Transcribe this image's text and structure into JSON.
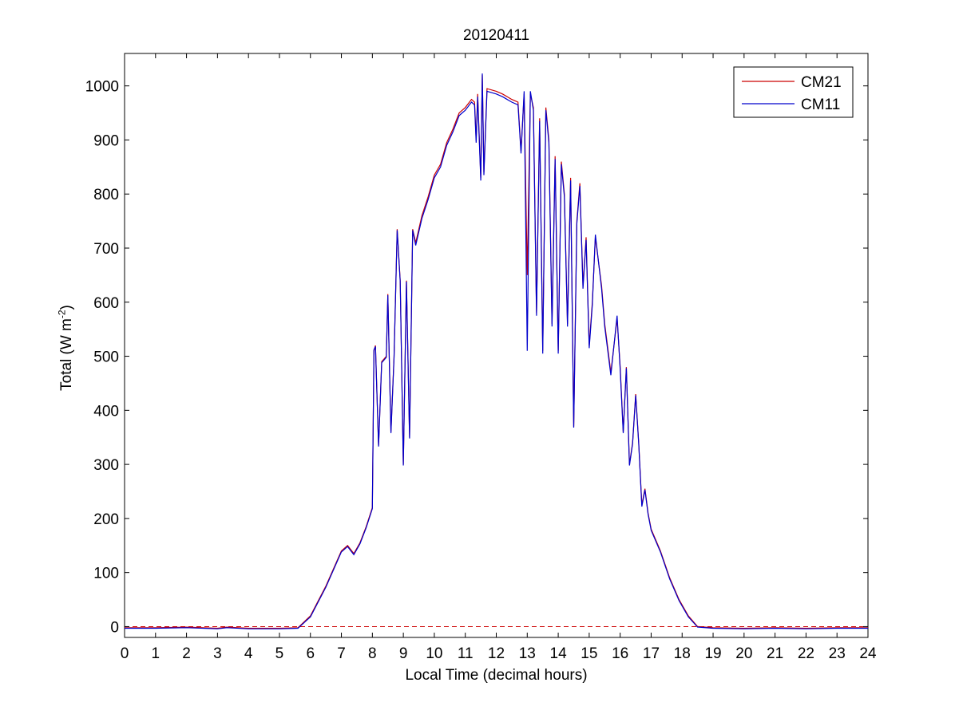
{
  "chart_data": {
    "type": "line",
    "title": "20120411",
    "xlabel": "Local Time (decimal hours)",
    "ylabel": {
      "main": "Total (W m",
      "sup": "-2",
      "tail": ")"
    },
    "xlim": [
      0,
      24
    ],
    "ylim": [
      -20,
      1060
    ],
    "xticks": [
      0,
      1,
      2,
      3,
      4,
      5,
      6,
      7,
      8,
      9,
      10,
      11,
      12,
      13,
      14,
      15,
      16,
      17,
      18,
      19,
      20,
      21,
      22,
      23,
      24
    ],
    "yticks": [
      0,
      100,
      200,
      300,
      400,
      500,
      600,
      700,
      800,
      900,
      1000
    ],
    "grid": false,
    "legend_position": "top-right",
    "reference_line": {
      "y": 0,
      "color": "#cc0000",
      "style": "dashed"
    },
    "series": [
      {
        "name": "CM21",
        "color": "#cc0000",
        "points": [
          [
            0,
            -2
          ],
          [
            1,
            -2
          ],
          [
            2,
            -1
          ],
          [
            3,
            -3
          ],
          [
            3.3,
            -1
          ],
          [
            4,
            -3
          ],
          [
            5,
            -3
          ],
          [
            5.6,
            -2
          ],
          [
            6,
            20
          ],
          [
            6.5,
            75
          ],
          [
            7,
            140
          ],
          [
            7.2,
            150
          ],
          [
            7.4,
            135
          ],
          [
            7.6,
            155
          ],
          [
            7.8,
            185
          ],
          [
            8,
            220
          ],
          [
            8.05,
            510
          ],
          [
            8.1,
            520
          ],
          [
            8.2,
            335
          ],
          [
            8.3,
            490
          ],
          [
            8.45,
            500
          ],
          [
            8.5,
            615
          ],
          [
            8.6,
            360
          ],
          [
            8.7,
            500
          ],
          [
            8.8,
            735
          ],
          [
            8.9,
            640
          ],
          [
            9,
            300
          ],
          [
            9.1,
            640
          ],
          [
            9.2,
            350
          ],
          [
            9.3,
            735
          ],
          [
            9.4,
            710
          ],
          [
            9.6,
            760
          ],
          [
            9.8,
            795
          ],
          [
            10,
            835
          ],
          [
            10.2,
            855
          ],
          [
            10.4,
            895
          ],
          [
            10.6,
            920
          ],
          [
            10.8,
            950
          ],
          [
            11,
            960
          ],
          [
            11.2,
            975
          ],
          [
            11.3,
            970
          ],
          [
            11.35,
            900
          ],
          [
            11.4,
            985
          ],
          [
            11.5,
            830
          ],
          [
            11.55,
            1020
          ],
          [
            11.6,
            840
          ],
          [
            11.7,
            995
          ],
          [
            12,
            990
          ],
          [
            12.2,
            985
          ],
          [
            12.5,
            975
          ],
          [
            12.7,
            970
          ],
          [
            12.8,
            880
          ],
          [
            12.9,
            985
          ],
          [
            13,
            650
          ],
          [
            13.1,
            985
          ],
          [
            13.2,
            960
          ],
          [
            13.3,
            580
          ],
          [
            13.4,
            940
          ],
          [
            13.5,
            510
          ],
          [
            13.6,
            960
          ],
          [
            13.7,
            900
          ],
          [
            13.8,
            560
          ],
          [
            13.9,
            870
          ],
          [
            14,
            510
          ],
          [
            14.1,
            860
          ],
          [
            14.2,
            800
          ],
          [
            14.3,
            560
          ],
          [
            14.4,
            830
          ],
          [
            14.5,
            370
          ],
          [
            14.6,
            750
          ],
          [
            14.7,
            820
          ],
          [
            14.8,
            630
          ],
          [
            14.9,
            720
          ],
          [
            15,
            520
          ],
          [
            15.1,
            600
          ],
          [
            15.2,
            720
          ],
          [
            15.4,
            630
          ],
          [
            15.5,
            560
          ],
          [
            15.7,
            470
          ],
          [
            15.9,
            570
          ],
          [
            16,
            480
          ],
          [
            16.1,
            360
          ],
          [
            16.2,
            480
          ],
          [
            16.3,
            300
          ],
          [
            16.4,
            340
          ],
          [
            16.5,
            430
          ],
          [
            16.6,
            340
          ],
          [
            16.7,
            225
          ],
          [
            16.8,
            255
          ],
          [
            16.9,
            210
          ],
          [
            17,
            180
          ],
          [
            17.3,
            140
          ],
          [
            17.6,
            90
          ],
          [
            17.9,
            50
          ],
          [
            18.2,
            20
          ],
          [
            18.5,
            0
          ],
          [
            19,
            -2
          ],
          [
            20,
            -3
          ],
          [
            21,
            -2
          ],
          [
            22,
            -3
          ],
          [
            23,
            -2
          ],
          [
            24,
            -2
          ]
        ]
      },
      {
        "name": "CM11",
        "color": "#0000cc",
        "points": [
          [
            0,
            -3
          ],
          [
            1,
            -3
          ],
          [
            2,
            -2
          ],
          [
            3,
            -4
          ],
          [
            3.3,
            -2
          ],
          [
            4,
            -4
          ],
          [
            5,
            -4
          ],
          [
            5.6,
            -3
          ],
          [
            6,
            18
          ],
          [
            6.5,
            73
          ],
          [
            7,
            138
          ],
          [
            7.2,
            148
          ],
          [
            7.4,
            133
          ],
          [
            7.6,
            153
          ],
          [
            7.8,
            183
          ],
          [
            8,
            218
          ],
          [
            8.05,
            512
          ],
          [
            8.1,
            518
          ],
          [
            8.2,
            333
          ],
          [
            8.3,
            488
          ],
          [
            8.45,
            498
          ],
          [
            8.5,
            613
          ],
          [
            8.6,
            358
          ],
          [
            8.7,
            498
          ],
          [
            8.8,
            733
          ],
          [
            8.9,
            638
          ],
          [
            9,
            298
          ],
          [
            9.1,
            638
          ],
          [
            9.2,
            348
          ],
          [
            9.3,
            733
          ],
          [
            9.4,
            705
          ],
          [
            9.6,
            755
          ],
          [
            9.8,
            790
          ],
          [
            10,
            830
          ],
          [
            10.2,
            850
          ],
          [
            10.4,
            890
          ],
          [
            10.6,
            915
          ],
          [
            10.8,
            945
          ],
          [
            11,
            955
          ],
          [
            11.2,
            970
          ],
          [
            11.3,
            965
          ],
          [
            11.35,
            895
          ],
          [
            11.4,
            980
          ],
          [
            11.5,
            825
          ],
          [
            11.55,
            1023
          ],
          [
            11.6,
            835
          ],
          [
            11.7,
            990
          ],
          [
            12,
            985
          ],
          [
            12.2,
            980
          ],
          [
            12.5,
            970
          ],
          [
            12.7,
            965
          ],
          [
            12.8,
            875
          ],
          [
            12.9,
            990
          ],
          [
            13,
            510
          ],
          [
            13.1,
            990
          ],
          [
            13.2,
            955
          ],
          [
            13.3,
            575
          ],
          [
            13.4,
            935
          ],
          [
            13.5,
            505
          ],
          [
            13.6,
            955
          ],
          [
            13.7,
            895
          ],
          [
            13.8,
            555
          ],
          [
            13.9,
            865
          ],
          [
            14,
            505
          ],
          [
            14.1,
            855
          ],
          [
            14.2,
            795
          ],
          [
            14.3,
            555
          ],
          [
            14.4,
            825
          ],
          [
            14.5,
            368
          ],
          [
            14.6,
            745
          ],
          [
            14.7,
            815
          ],
          [
            14.8,
            625
          ],
          [
            14.9,
            715
          ],
          [
            15,
            515
          ],
          [
            15.1,
            595
          ],
          [
            15.2,
            725
          ],
          [
            15.4,
            625
          ],
          [
            15.5,
            555
          ],
          [
            15.7,
            465
          ],
          [
            15.9,
            575
          ],
          [
            16,
            475
          ],
          [
            16.1,
            358
          ],
          [
            16.2,
            478
          ],
          [
            16.3,
            298
          ],
          [
            16.4,
            338
          ],
          [
            16.5,
            428
          ],
          [
            16.6,
            338
          ],
          [
            16.7,
            222
          ],
          [
            16.8,
            253
          ],
          [
            16.9,
            208
          ],
          [
            17,
            178
          ],
          [
            17.3,
            138
          ],
          [
            17.6,
            88
          ],
          [
            17.9,
            48
          ],
          [
            18.2,
            18
          ],
          [
            18.5,
            -1
          ],
          [
            19,
            -3
          ],
          [
            20,
            -4
          ],
          [
            21,
            -3
          ],
          [
            22,
            -4
          ],
          [
            23,
            -3
          ],
          [
            24,
            -3
          ]
        ]
      }
    ]
  }
}
